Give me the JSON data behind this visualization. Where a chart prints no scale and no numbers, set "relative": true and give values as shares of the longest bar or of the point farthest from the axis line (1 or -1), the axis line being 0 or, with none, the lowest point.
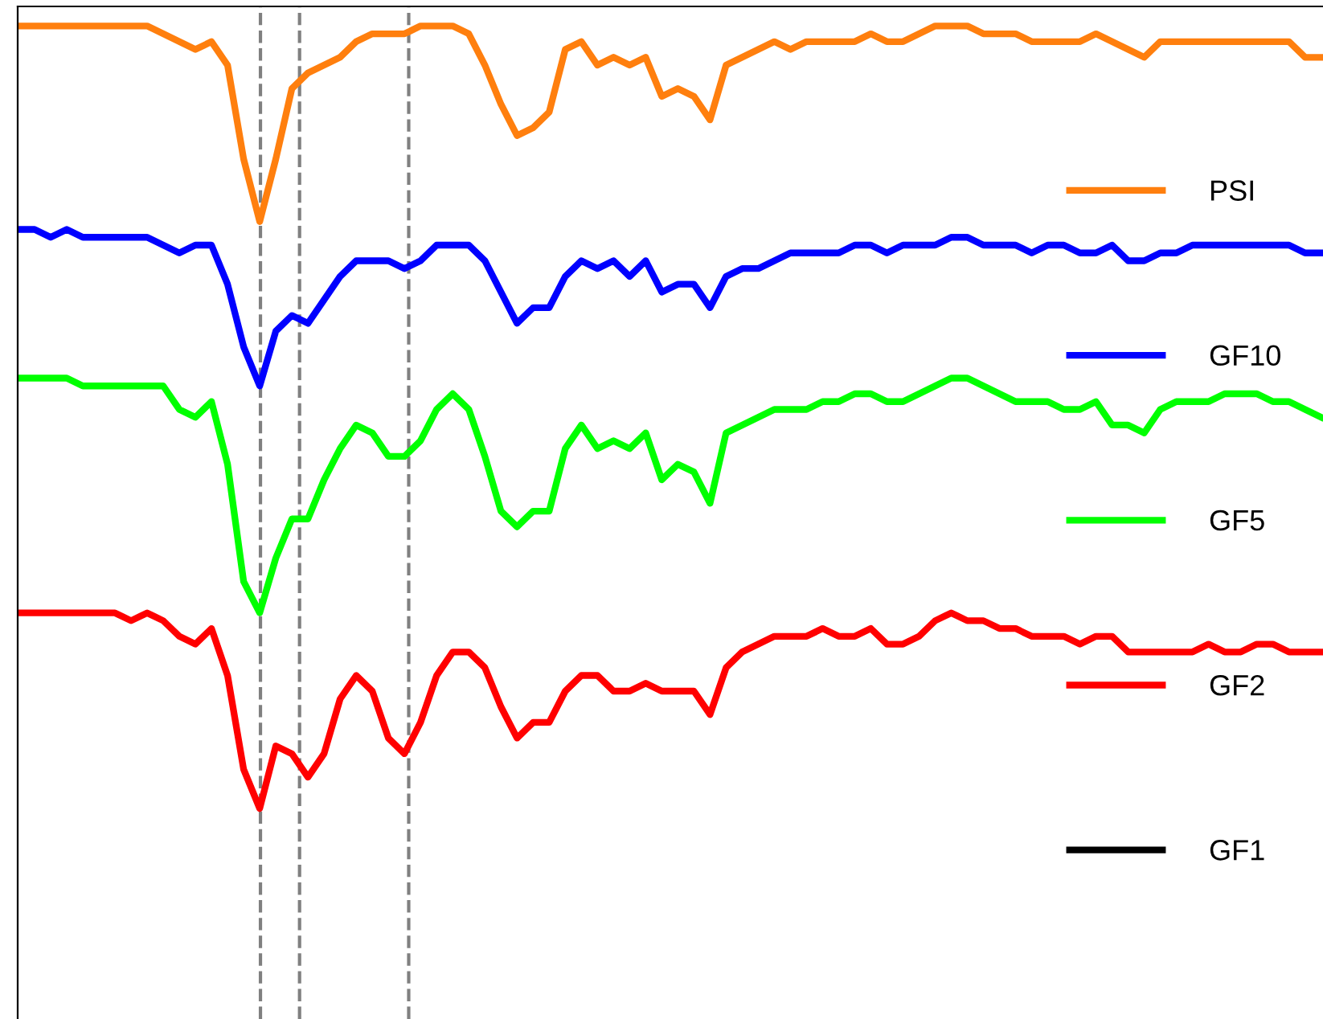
{
  "chart_data": {
    "type": "line",
    "relative": true,
    "legend": "right",
    "line_style": "solid",
    "categories": [
      null,
      null,
      null,
      null,
      null,
      null,
      null,
      null,
      null,
      null,
      null,
      null,
      null,
      null,
      null,
      null,
      null,
      null,
      null,
      null,
      null,
      null,
      null,
      null,
      null,
      null,
      null,
      null,
      null,
      null,
      null,
      null,
      null,
      null,
      null,
      null,
      null,
      null,
      null,
      null,
      null,
      null,
      null,
      null,
      null,
      null,
      null,
      null,
      null,
      null,
      null,
      null,
      null,
      null,
      null,
      null,
      null,
      null,
      null,
      null,
      null,
      null,
      null,
      null,
      null,
      null,
      null,
      null,
      null,
      null,
      null,
      null,
      null,
      null,
      null,
      null,
      null,
      null,
      null,
      null,
      null,
      null
    ],
    "series": [
      {
        "name": "PSI",
        "color": "#ff7f0e",
        "values": [
          1.0,
          1.0,
          1.0,
          1.0,
          1.0,
          1.0,
          1.0,
          1.0,
          1.0,
          0.99,
          0.98,
          0.97,
          0.98,
          0.95,
          0.83,
          0.75,
          0.83,
          0.92,
          0.94,
          0.95,
          0.96,
          0.98,
          0.99,
          0.99,
          0.99,
          1.0,
          1.0,
          1.0,
          0.99,
          0.95,
          0.9,
          0.86,
          0.87,
          0.89,
          0.97,
          0.98,
          0.95,
          0.96,
          0.95,
          0.96,
          0.91,
          0.92,
          0.91,
          0.88,
          0.95,
          0.96,
          0.97,
          0.98,
          0.97,
          0.98,
          0.98,
          0.98,
          0.98,
          0.99,
          0.98,
          0.98,
          0.99,
          1.0,
          1.0,
          1.0,
          0.99,
          0.99,
          0.99,
          0.98,
          0.98,
          0.98,
          0.98,
          0.99,
          0.98,
          0.97,
          0.96,
          0.98,
          0.98,
          0.98,
          0.98,
          0.98,
          0.98,
          0.98,
          0.98,
          0.98,
          0.96,
          0.96
        ]
      },
      {
        "name": "GF10",
        "color": "#0000ff",
        "values": [
          0.74,
          0.74,
          0.73,
          0.74,
          0.73,
          0.73,
          0.73,
          0.73,
          0.73,
          0.72,
          0.71,
          0.72,
          0.72,
          0.67,
          0.59,
          0.54,
          0.61,
          0.63,
          0.62,
          0.65,
          0.68,
          0.7,
          0.7,
          0.7,
          0.69,
          0.7,
          0.72,
          0.72,
          0.72,
          0.7,
          0.66,
          0.62,
          0.64,
          0.64,
          0.68,
          0.7,
          0.69,
          0.7,
          0.68,
          0.7,
          0.66,
          0.67,
          0.67,
          0.64,
          0.68,
          0.69,
          0.69,
          0.7,
          0.71,
          0.71,
          0.71,
          0.71,
          0.72,
          0.72,
          0.71,
          0.72,
          0.72,
          0.72,
          0.73,
          0.73,
          0.72,
          0.72,
          0.72,
          0.71,
          0.72,
          0.72,
          0.71,
          0.71,
          0.72,
          0.7,
          0.7,
          0.71,
          0.71,
          0.72,
          0.72,
          0.72,
          0.72,
          0.72,
          0.72,
          0.72,
          0.71,
          0.71
        ]
      },
      {
        "name": "GF5",
        "color": "#00ff00",
        "values": [
          0.55,
          0.55,
          0.55,
          0.55,
          0.54,
          0.54,
          0.54,
          0.54,
          0.54,
          0.54,
          0.51,
          0.5,
          0.52,
          0.44,
          0.29,
          0.25,
          0.32,
          0.37,
          0.37,
          0.42,
          0.46,
          0.49,
          0.48,
          0.45,
          0.45,
          0.47,
          0.51,
          0.53,
          0.51,
          0.45,
          0.38,
          0.36,
          0.38,
          0.38,
          0.46,
          0.49,
          0.46,
          0.47,
          0.46,
          0.48,
          0.42,
          0.44,
          0.43,
          0.39,
          0.48,
          0.49,
          0.5,
          0.51,
          0.51,
          0.51,
          0.52,
          0.52,
          0.53,
          0.53,
          0.52,
          0.52,
          0.53,
          0.54,
          0.55,
          0.55,
          0.54,
          0.53,
          0.52,
          0.52,
          0.52,
          0.51,
          0.51,
          0.52,
          0.49,
          0.49,
          0.48,
          0.51,
          0.52,
          0.52,
          0.52,
          0.53,
          0.53,
          0.53,
          0.52,
          0.52,
          0.51,
          0.5
        ]
      },
      {
        "name": "GF2",
        "color": "#ff0000",
        "values": [
          0.25,
          0.25,
          0.25,
          0.25,
          0.25,
          0.25,
          0.25,
          0.24,
          0.25,
          0.24,
          0.22,
          0.21,
          0.23,
          0.17,
          0.05,
          0,
          0.08,
          0.07,
          0.04,
          0.07,
          0.14,
          0.17,
          0.15,
          0.09,
          0.07,
          0.11,
          0.17,
          0.2,
          0.2,
          0.18,
          0.13,
          0.09,
          0.11,
          0.11,
          0.15,
          0.17,
          0.17,
          0.15,
          0.15,
          0.16,
          0.15,
          0.15,
          0.15,
          0.12,
          0.18,
          0.2,
          0.21,
          0.22,
          0.22,
          0.22,
          0.23,
          0.22,
          0.22,
          0.23,
          0.21,
          0.21,
          0.22,
          0.24,
          0.25,
          0.24,
          0.24,
          0.23,
          0.23,
          0.22,
          0.22,
          0.22,
          0.21,
          0.22,
          0.22,
          0.2,
          0.2,
          0.2,
          0.2,
          0.2,
          0.21,
          0.2,
          0.2,
          0.21,
          0.21,
          0.2,
          0.2,
          0.2
        ]
      },
      {
        "name": "GF1",
        "color": "#000000",
        "values": [
          null,
          null,
          null,
          null,
          null,
          null,
          null,
          null,
          null,
          null,
          null,
          null,
          null,
          null,
          null,
          null,
          null,
          null,
          null,
          null,
          null,
          null,
          null,
          null,
          null,
          null,
          null,
          null,
          null,
          null,
          null,
          null,
          null,
          null,
          null,
          null,
          null,
          null,
          null,
          null,
          null,
          null,
          null,
          null,
          null,
          null,
          null,
          null,
          null,
          null,
          null,
          null,
          null,
          null,
          null,
          null,
          null,
          null,
          null,
          null,
          null,
          null,
          null,
          null,
          null,
          null,
          null,
          null,
          null,
          null,
          null,
          null,
          null,
          null,
          null,
          null,
          null,
          null,
          null,
          null,
          null,
          null
        ]
      }
    ]
  }
}
